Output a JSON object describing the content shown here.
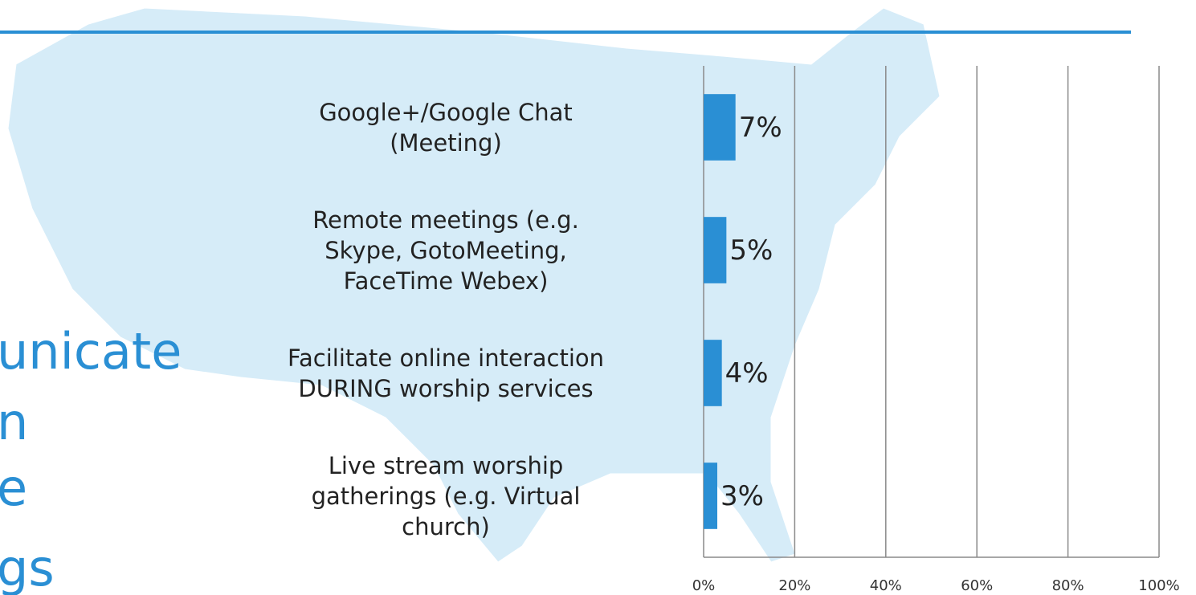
{
  "chart_data": {
    "type": "barh",
    "categories": [
      "Google+/Google Chat\n(Meeting)",
      "Remote meetings (e.g.\nSkype, GotoMeeting,\nFaceTime Webex)",
      "Facilitate online interaction\nDURING worship services",
      "Live stream worship\ngatherings (e.g. Virtual\nchurch)"
    ],
    "values": [
      7,
      5,
      4,
      3
    ],
    "value_labels": [
      "7%",
      "5%",
      "4%",
      "3%"
    ],
    "color": "#2a8fd4",
    "xlim": [
      0,
      100
    ],
    "xticks": [
      {
        "value": 0,
        "label": "0%"
      },
      {
        "value": 20,
        "label": "20%"
      },
      {
        "value": 40,
        "label": "40%"
      },
      {
        "value": 60,
        "label": "60%"
      },
      {
        "value": 80,
        "label": "80%"
      },
      {
        "value": 100,
        "label": "100%"
      }
    ],
    "grid": true,
    "annotations": [
      "unicate",
      "n",
      "e",
      "gs"
    ]
  }
}
